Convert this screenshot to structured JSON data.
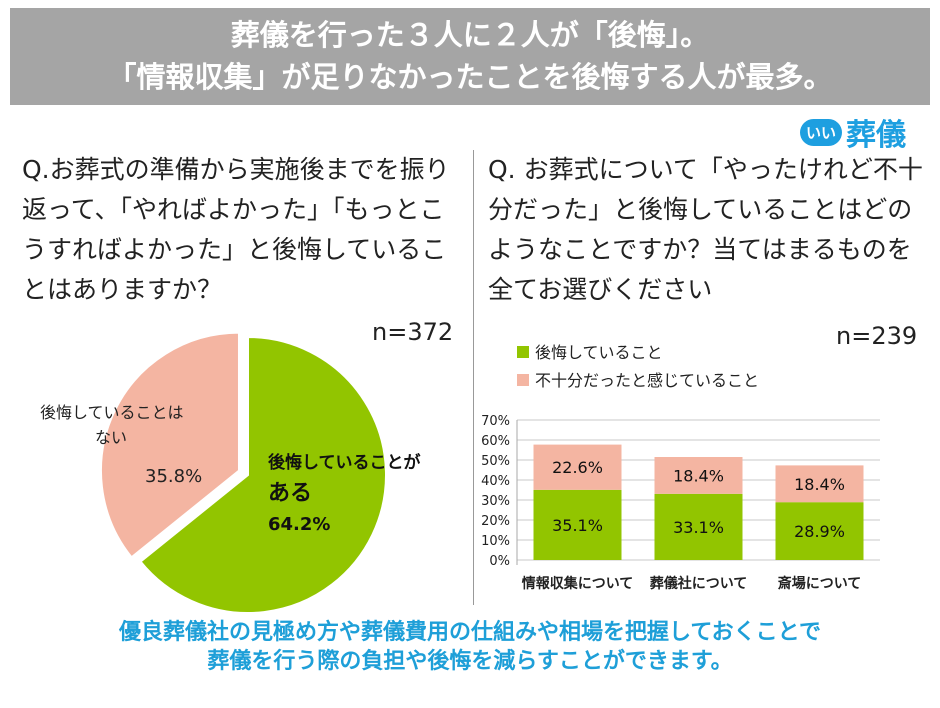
{
  "header": {
    "line1": "葬儀を行った３人に２人が「後悔」。",
    "line2": "「情報収集」が足りなかったことを後悔する人が最多。"
  },
  "logo": {
    "pill": "いい",
    "name": "葬儀"
  },
  "left": {
    "question": "Q.お葬式の準備から実施後までを振り返って、「やればよかった」「もっとこうすればよかった」と後悔していることはありますか？",
    "n": "n=372"
  },
  "right": {
    "question": "Q. お葬式について「やったけれど不十分だった」と後悔していることはどのようなことですか？当てはまるものを全てお選びください",
    "n": "n=239"
  },
  "footer": {
    "line1": "優良葬儀社の見極め方や葬儀費用の仕組みや相場を把握しておくことで",
    "line2": "葬儀を行う際の負担や後悔を減らすことができます。"
  },
  "chart_data": [
    {
      "type": "pie",
      "slices": [
        {
          "label": "後悔していることがある",
          "value": 64.2,
          "display": "64.2%",
          "color": "#92c500"
        },
        {
          "label": "後悔していることはない",
          "value": 35.8,
          "display": "35.8%",
          "color": "#f4b5a2"
        }
      ]
    },
    {
      "type": "bar",
      "stacked": true,
      "categories": [
        "情報収集について",
        "葬儀社について",
        "斎場について"
      ],
      "series": [
        {
          "name": "後悔していること",
          "values": [
            35.1,
            33.1,
            28.9
          ],
          "color": "#92c500"
        },
        {
          "name": "不十分だったと感じていること",
          "values": [
            22.6,
            18.4,
            18.4
          ],
          "color": "#f4b5a2"
        }
      ],
      "ylim": [
        0,
        70
      ],
      "yticks": [
        "0%",
        "10%",
        "20%",
        "30%",
        "40%",
        "50%",
        "60%",
        "70%"
      ],
      "grid": true,
      "legend": "top-left"
    }
  ]
}
